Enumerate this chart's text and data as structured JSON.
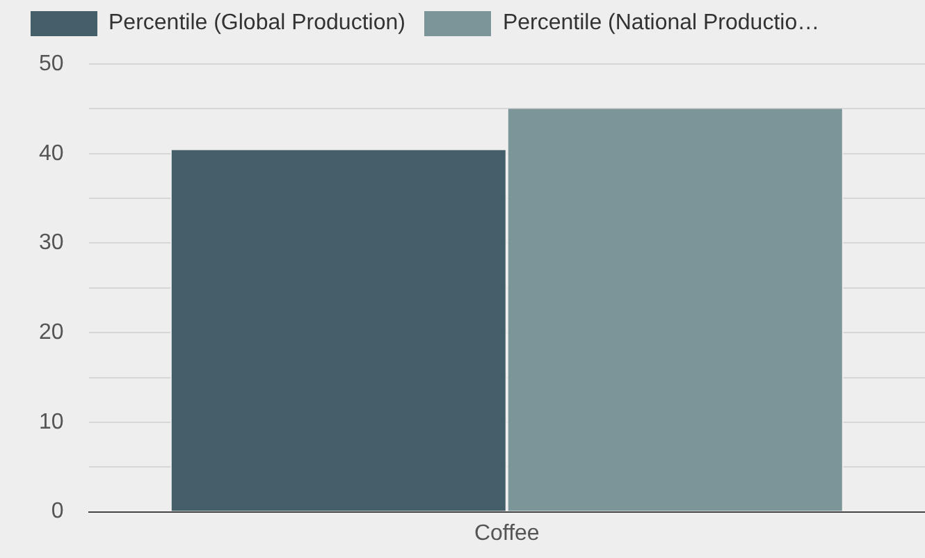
{
  "chart_data": {
    "type": "bar",
    "categories": [
      "Coffee"
    ],
    "series": [
      {
        "name": "Percentile (Global Production)",
        "color": "#455f6a",
        "values": [
          40.4
        ]
      },
      {
        "name": "Percentile (National Productio…",
        "color": "#7b9598",
        "values": [
          45
        ]
      }
    ],
    "ylim": [
      0,
      50
    ],
    "yticks": [
      0,
      {
        "value": 5,
        "label": null
      },
      10,
      {
        "value": 15,
        "label": null
      },
      20,
      {
        "value": 25,
        "label": null
      },
      30,
      {
        "value": 35,
        "label": null
      },
      40,
      {
        "value": 45,
        "label": null
      },
      50
    ],
    "grid": "y",
    "legend": "top left"
  }
}
